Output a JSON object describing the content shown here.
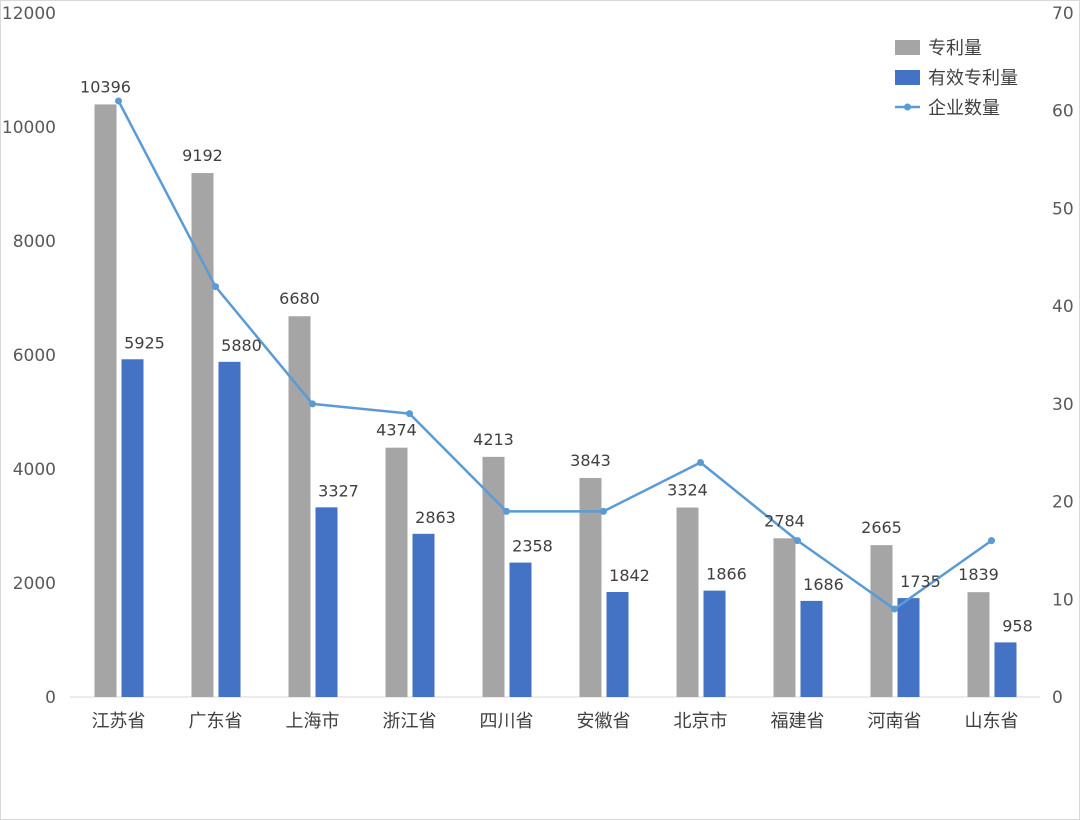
{
  "chart_data": {
    "type": "bar",
    "categories": [
      "江苏省",
      "广东省",
      "上海市",
      "浙江省",
      "四川省",
      "安徽省",
      "北京市",
      "福建省",
      "河南省",
      "山东省"
    ],
    "series": [
      {
        "name": "专利量",
        "type": "bar",
        "axis": "left",
        "color": "#a5a5a5",
        "values": [
          10396,
          9192,
          6680,
          4374,
          4213,
          3843,
          3324,
          2784,
          2665,
          1839
        ]
      },
      {
        "name": "有效专利量",
        "type": "bar",
        "axis": "left",
        "color": "#4472c4",
        "values": [
          5925,
          5880,
          3327,
          2863,
          2358,
          1842,
          1866,
          1686,
          1735,
          958
        ]
      },
      {
        "name": "企业数量",
        "type": "line",
        "axis": "right",
        "color": "#5b9bd5",
        "values": [
          61,
          42,
          30,
          29,
          19,
          19,
          24,
          16,
          9,
          16
        ]
      }
    ],
    "left_axis": {
      "ylim": [
        0,
        12000
      ],
      "ticks": [
        "0",
        "2000",
        "4000",
        "6000",
        "8000",
        "10000",
        "12000"
      ]
    },
    "right_axis": {
      "ylim": [
        0,
        70
      ],
      "ticks": [
        "0",
        "10",
        "20",
        "30",
        "40",
        "50",
        "60",
        "70"
      ]
    },
    "grid": false,
    "legend_position": "top-right"
  }
}
